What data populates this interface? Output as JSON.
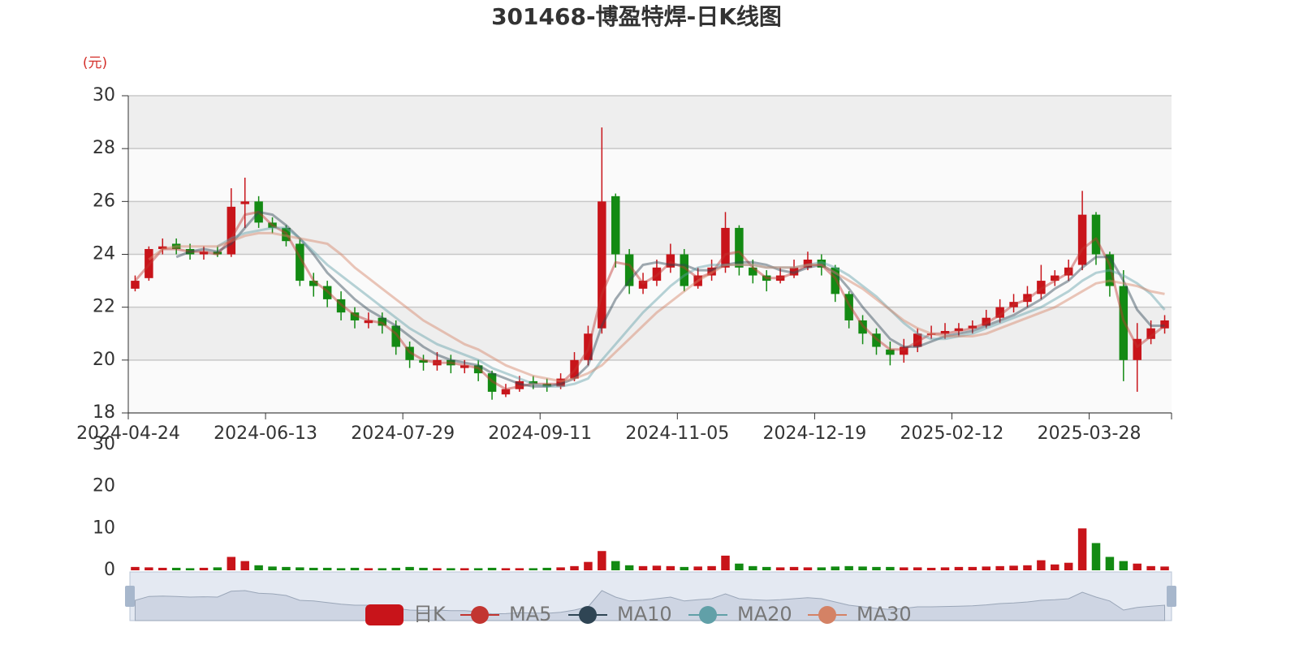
{
  "chart_data": {
    "type": "candlestick",
    "title": "301468-博盈特焊-日K线图",
    "y_unit": "(元)",
    "name": "日K",
    "up_color": "#c8141a",
    "down_color": "#138a13",
    "categories": [
      "2024-04-24",
      null,
      null,
      null,
      null,
      null,
      null,
      null,
      null,
      null,
      "2024-06-13",
      null,
      null,
      null,
      null,
      null,
      null,
      null,
      null,
      null,
      "2024-07-29",
      null,
      null,
      null,
      null,
      null,
      null,
      null,
      null,
      null,
      "2024-09-11",
      null,
      null,
      null,
      null,
      null,
      null,
      null,
      null,
      null,
      "2024-11-05",
      null,
      null,
      null,
      null,
      null,
      null,
      null,
      null,
      null,
      "2024-12-19",
      null,
      null,
      null,
      null,
      null,
      null,
      null,
      null,
      null,
      "2025-02-12",
      null,
      null,
      null,
      null,
      null,
      null,
      null,
      null,
      null,
      "2025-03-28",
      null,
      null,
      null,
      null,
      null
    ],
    "open": [
      22.7,
      23.1,
      24.2,
      24.4,
      24.2,
      24.0,
      24.1,
      24.0,
      25.9,
      26.0,
      25.2,
      25.0,
      24.4,
      23.0,
      22.8,
      22.3,
      21.8,
      21.4,
      21.6,
      21.3,
      20.5,
      20.0,
      19.8,
      20.0,
      19.7,
      19.8,
      19.5,
      18.7,
      18.9,
      19.2,
      19.1,
      19.0,
      19.3,
      20.0,
      21.2,
      26.2,
      24.0,
      22.7,
      23.0,
      23.5,
      24.0,
      22.8,
      23.2,
      23.5,
      25.0,
      23.5,
      23.2,
      23.0,
      23.2,
      23.5,
      23.8,
      23.5,
      22.5,
      21.5,
      21.0,
      20.4,
      20.2,
      20.5,
      21.0,
      21.0,
      21.1,
      21.2,
      21.3,
      21.6,
      22.0,
      22.2,
      22.5,
      23.0,
      23.2,
      23.6,
      25.5,
      24.0,
      22.8,
      20.0,
      20.8,
      21.2
    ],
    "close": [
      23.0,
      24.2,
      24.3,
      24.2,
      24.0,
      24.1,
      24.0,
      25.8,
      26.0,
      25.2,
      25.0,
      24.5,
      23.0,
      22.8,
      22.3,
      21.8,
      21.5,
      21.5,
      21.3,
      20.5,
      20.0,
      19.9,
      20.0,
      19.8,
      19.8,
      19.5,
      18.8,
      18.9,
      19.2,
      19.1,
      19.0,
      19.3,
      20.0,
      21.0,
      26.0,
      24.0,
      22.8,
      23.0,
      23.5,
      24.0,
      22.8,
      23.2,
      23.5,
      25.0,
      23.5,
      23.2,
      23.0,
      23.2,
      23.5,
      23.8,
      23.5,
      22.5,
      21.5,
      21.0,
      20.5,
      20.2,
      20.5,
      21.0,
      21.0,
      21.1,
      21.2,
      21.3,
      21.6,
      22.0,
      22.2,
      22.5,
      23.0,
      23.2,
      23.5,
      25.5,
      24.0,
      22.8,
      20.0,
      20.8,
      21.2,
      21.5
    ],
    "low": [
      22.6,
      23.0,
      24.0,
      24.0,
      23.8,
      23.8,
      23.9,
      23.9,
      25.0,
      25.0,
      24.8,
      24.3,
      22.8,
      22.4,
      22.0,
      21.5,
      21.2,
      21.2,
      21.0,
      20.2,
      19.7,
      19.6,
      19.6,
      19.5,
      19.5,
      19.2,
      18.5,
      18.6,
      18.8,
      18.9,
      18.8,
      18.9,
      19.2,
      19.8,
      21.0,
      23.5,
      22.5,
      22.5,
      22.8,
      23.3,
      22.6,
      22.7,
      23.0,
      23.3,
      23.2,
      22.9,
      22.6,
      22.9,
      23.1,
      23.4,
      23.2,
      22.2,
      21.2,
      20.6,
      20.2,
      19.8,
      19.9,
      20.3,
      20.8,
      20.8,
      20.9,
      21.0,
      21.2,
      21.4,
      21.8,
      22.0,
      22.3,
      22.8,
      23.0,
      23.4,
      23.6,
      22.4,
      19.2,
      18.8,
      20.6,
      21.0
    ],
    "high": [
      23.2,
      24.3,
      24.6,
      24.6,
      24.4,
      24.3,
      24.3,
      26.5,
      26.9,
      26.2,
      25.4,
      25.1,
      24.6,
      23.3,
      23.0,
      22.6,
      22.0,
      21.8,
      21.8,
      21.5,
      20.7,
      20.2,
      20.3,
      20.2,
      20.0,
      20.0,
      19.6,
      19.1,
      19.4,
      19.4,
      19.3,
      19.5,
      20.3,
      21.3,
      28.8,
      26.3,
      24.2,
      23.3,
      23.8,
      24.4,
      24.2,
      23.5,
      23.8,
      25.6,
      25.1,
      23.8,
      23.4,
      23.5,
      23.8,
      24.1,
      24.0,
      23.6,
      22.6,
      21.7,
      21.2,
      20.7,
      20.8,
      21.2,
      21.3,
      21.4,
      21.4,
      21.5,
      21.9,
      22.3,
      22.5,
      22.8,
      23.6,
      23.4,
      23.8,
      26.4,
      25.6,
      24.1,
      23.4,
      21.4,
      21.5,
      21.7
    ],
    "series": [
      {
        "name": "MA5",
        "color": "#c23531",
        "values": [
          23.0,
          23.6,
          24.2,
          24.2,
          24.1,
          24.1,
          24.0,
          24.6,
          25.5,
          25.6,
          25.1,
          24.8,
          23.9,
          23.0,
          22.6,
          22.1,
          21.7,
          21.5,
          21.4,
          21.0,
          20.3,
          20.0,
          19.9,
          19.9,
          19.8,
          19.7,
          19.2,
          18.9,
          19.0,
          19.1,
          19.1,
          19.1,
          19.6,
          20.4,
          22.5,
          23.7,
          23.6,
          22.9,
          23.2,
          23.7,
          23.5,
          23.1,
          23.3,
          24.0,
          24.1,
          23.5,
          23.1,
          23.1,
          23.3,
          23.6,
          23.6,
          23.1,
          22.1,
          21.3,
          20.8,
          20.4,
          20.4,
          20.7,
          21.0,
          21.0,
          21.1,
          21.2,
          21.4,
          21.7,
          22.1,
          22.3,
          22.7,
          23.0,
          23.3,
          24.2,
          24.6,
          23.6,
          21.5,
          20.5,
          20.9,
          21.3
        ]
      },
      {
        "name": "MA10",
        "color": "#2f4554",
        "values": [
          null,
          null,
          null,
          23.9,
          24.1,
          24.2,
          24.1,
          24.4,
          25.0,
          25.6,
          25.5,
          25.1,
          24.6,
          24.0,
          23.3,
          22.8,
          22.3,
          21.9,
          21.6,
          21.3,
          20.9,
          20.5,
          20.2,
          20.0,
          19.9,
          19.8,
          19.5,
          19.3,
          19.1,
          19.0,
          19.0,
          19.1,
          19.3,
          19.8,
          21.3,
          22.3,
          23.0,
          23.6,
          23.7,
          23.6,
          23.6,
          23.4,
          23.4,
          23.6,
          23.7,
          23.7,
          23.6,
          23.4,
          23.3,
          23.5,
          23.6,
          23.3,
          22.7,
          22.0,
          21.4,
          20.8,
          20.5,
          20.5,
          20.7,
          20.9,
          21.0,
          21.1,
          21.3,
          21.5,
          21.7,
          22.0,
          22.3,
          22.7,
          23.0,
          23.5,
          23.9,
          23.9,
          23.0,
          21.9,
          21.3,
          21.3
        ]
      },
      {
        "name": "MA20",
        "color": "#61a0a8",
        "values": [
          null,
          null,
          null,
          null,
          null,
          null,
          24.3,
          24.6,
          24.8,
          24.9,
          25.0,
          25.0,
          24.6,
          24.1,
          23.6,
          23.2,
          22.8,
          22.4,
          22.0,
          21.6,
          21.2,
          20.9,
          20.6,
          20.4,
          20.2,
          20.0,
          19.7,
          19.5,
          19.3,
          19.1,
          19.0,
          19.0,
          19.1,
          19.3,
          20.0,
          20.6,
          21.2,
          21.8,
          22.3,
          22.8,
          23.2,
          23.5,
          23.6,
          23.6,
          23.6,
          23.6,
          23.5,
          23.5,
          23.5,
          23.6,
          23.7,
          23.5,
          23.2,
          22.8,
          22.4,
          21.9,
          21.4,
          21.0,
          20.8,
          20.8,
          20.9,
          21.0,
          21.2,
          21.4,
          21.6,
          21.8,
          22.0,
          22.3,
          22.6,
          23.0,
          23.3,
          23.4,
          23.2,
          22.9,
          22.5,
          21.9
        ]
      },
      {
        "name": "MA30",
        "color": "#d48265",
        "values": [
          null,
          23.8,
          24.2,
          24.3,
          24.3,
          24.3,
          24.3,
          24.5,
          24.7,
          24.8,
          24.8,
          24.7,
          24.6,
          24.5,
          24.4,
          24.0,
          23.5,
          23.1,
          22.7,
          22.3,
          21.9,
          21.5,
          21.2,
          20.9,
          20.6,
          20.4,
          20.1,
          19.8,
          19.6,
          19.4,
          19.3,
          19.2,
          19.3,
          19.5,
          19.8,
          20.3,
          20.8,
          21.3,
          21.8,
          22.2,
          22.6,
          23.0,
          23.3,
          23.6,
          23.6,
          23.6,
          23.5,
          23.5,
          23.5,
          23.6,
          23.6,
          23.3,
          23.0,
          22.7,
          22.3,
          21.9,
          21.5,
          21.2,
          21.0,
          20.9,
          20.9,
          20.9,
          21.0,
          21.2,
          21.4,
          21.6,
          21.8,
          22.0,
          22.3,
          22.6,
          22.9,
          23.0,
          22.9,
          22.8,
          22.6,
          22.5
        ]
      }
    ],
    "ylim": [
      18,
      30
    ],
    "yticks": [
      18,
      20,
      22,
      24,
      26,
      28,
      30
    ],
    "grid": true,
    "split_area": true,
    "legend": "bottom",
    "volume": {
      "values": [
        0.8,
        0.7,
        0.6,
        0.6,
        0.5,
        0.6,
        0.7,
        3.2,
        2.2,
        1.2,
        0.9,
        0.8,
        0.7,
        0.6,
        0.6,
        0.5,
        0.6,
        0.5,
        0.5,
        0.6,
        0.8,
        0.6,
        0.5,
        0.5,
        0.5,
        0.5,
        0.6,
        0.5,
        0.5,
        0.5,
        0.6,
        0.7,
        1.0,
        2.0,
        4.6,
        2.2,
        1.2,
        1.0,
        1.1,
        1.0,
        0.8,
        0.9,
        1.0,
        3.5,
        1.6,
        1.0,
        0.8,
        0.7,
        0.8,
        0.7,
        0.7,
        0.9,
        1.0,
        0.9,
        0.8,
        0.8,
        0.7,
        0.7,
        0.6,
        0.7,
        0.8,
        0.8,
        0.9,
        1.0,
        1.1,
        1.2,
        2.4,
        1.4,
        1.8,
        10.0,
        6.5,
        3.2,
        2.2,
        1.6,
        1.0,
        0.9
      ],
      "ylim": [
        0,
        30
      ],
      "yticks": [
        0,
        10,
        20,
        30
      ]
    }
  }
}
